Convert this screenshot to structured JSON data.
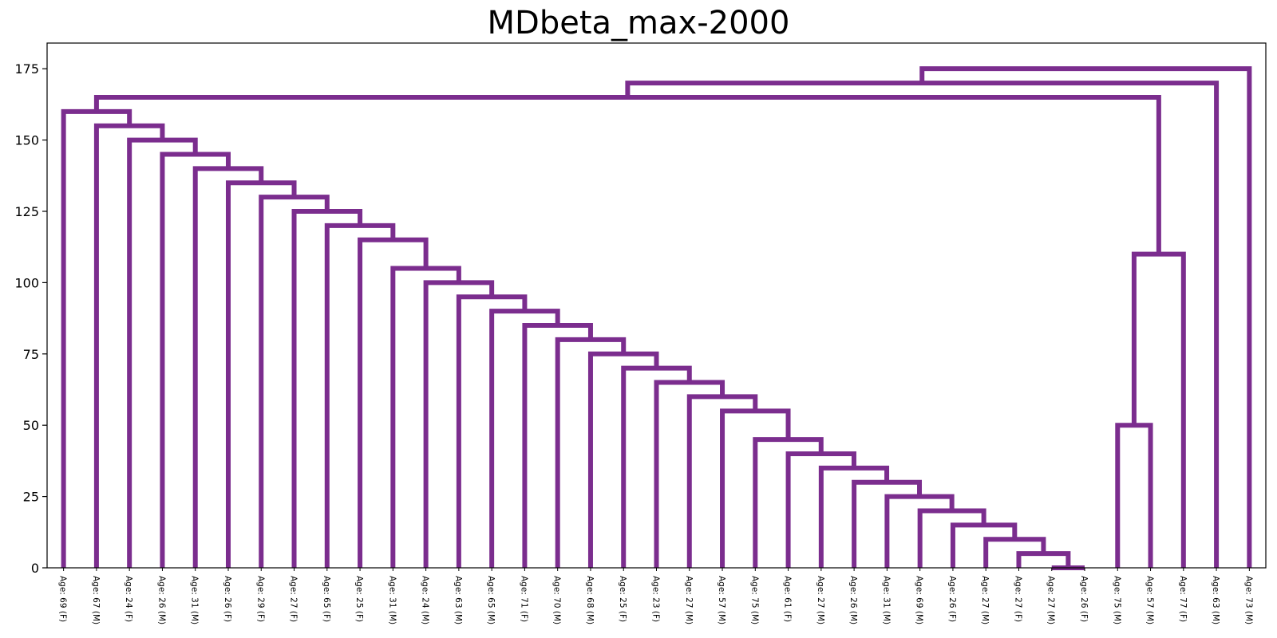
{
  "chart_data": {
    "type": "dendrogram",
    "title": "MDbeta_max-2000",
    "xlabel": "",
    "ylabel": "",
    "ylim": [
      0,
      184
    ],
    "yticks": [
      0,
      25,
      50,
      75,
      100,
      125,
      150,
      175
    ],
    "grid": false,
    "color": "#7b2d8e",
    "leaves": [
      "Age: 69 (F)",
      "Age: 67 (M)",
      "Age: 24 (F)",
      "Age: 26 (M)",
      "Age: 31 (M)",
      "Age: 26 (F)",
      "Age: 29 (F)",
      "Age: 27 (F)",
      "Age: 65 (F)",
      "Age: 25 (F)",
      "Age: 31 (M)",
      "Age: 24 (M)",
      "Age: 63 (M)",
      "Age: 65 (M)",
      "Age: 71 (F)",
      "Age: 70 (M)",
      "Age: 68 (M)",
      "Age: 25 (F)",
      "Age: 23 (F)",
      "Age: 27 (M)",
      "Age: 57 (M)",
      "Age: 75 (M)",
      "Age: 61 (F)",
      "Age: 27 (M)",
      "Age: 26 (M)",
      "Age: 31 (M)",
      "Age: 69 (M)",
      "Age: 26 (F)",
      "Age: 27 (M)",
      "Age: 27 (F)",
      "Age: 27 (M)",
      "Age: 26 (F)",
      "Age: 75 (M)",
      "Age: 57 (M)",
      "Age: 77 (F)",
      "Age: 63 (M)",
      "Age: 73 (M)"
    ],
    "merges": [
      {
        "left": "L30",
        "right": "L31",
        "height": 0
      },
      {
        "left": "L29",
        "right": "C1",
        "height": 5
      },
      {
        "left": "L28",
        "right": "C2",
        "height": 10
      },
      {
        "left": "L27",
        "right": "C3",
        "height": 15
      },
      {
        "left": "L26",
        "right": "C4",
        "height": 20
      },
      {
        "left": "L25",
        "right": "C5",
        "height": 25
      },
      {
        "left": "L24",
        "right": "C6",
        "height": 30
      },
      {
        "left": "L23",
        "right": "C7",
        "height": 35
      },
      {
        "left": "L22",
        "right": "C8",
        "height": 40
      },
      {
        "left": "L21",
        "right": "C9",
        "height": 45
      },
      {
        "left": "L20",
        "right": "C10",
        "height": 55
      },
      {
        "left": "L19",
        "right": "C11",
        "height": 60
      },
      {
        "left": "L18",
        "right": "C12",
        "height": 65
      },
      {
        "left": "L17",
        "right": "C13",
        "height": 70
      },
      {
        "left": "L16",
        "right": "C14",
        "height": 75
      },
      {
        "left": "L15",
        "right": "C15",
        "height": 80
      },
      {
        "left": "L14",
        "right": "C16",
        "height": 85
      },
      {
        "left": "L13",
        "right": "C17",
        "height": 90
      },
      {
        "left": "L12",
        "right": "C18",
        "height": 95
      },
      {
        "left": "L11",
        "right": "C19",
        "height": 100
      },
      {
        "left": "L10",
        "right": "C20",
        "height": 105
      },
      {
        "left": "L9",
        "right": "C21",
        "height": 115
      },
      {
        "left": "L8",
        "right": "C22",
        "height": 120
      },
      {
        "left": "L7",
        "right": "C23",
        "height": 125
      },
      {
        "left": "L6",
        "right": "C24",
        "height": 130
      },
      {
        "left": "L5",
        "right": "C25",
        "height": 135
      },
      {
        "left": "L4",
        "right": "C26",
        "height": 140
      },
      {
        "left": "L3",
        "right": "C27",
        "height": 145
      },
      {
        "left": "L2",
        "right": "C28",
        "height": 150
      },
      {
        "left": "L1",
        "right": "C29",
        "height": 155
      },
      {
        "left": "L0",
        "right": "C30",
        "height": 160
      },
      {
        "left": "L32",
        "right": "L33",
        "height": 50
      },
      {
        "left": "C32",
        "right": "L34",
        "height": 110
      },
      {
        "left": "C31",
        "right": "C33",
        "height": 165
      },
      {
        "left": "C34",
        "right": "L35",
        "height": 170
      },
      {
        "left": "C35",
        "right": "L36",
        "height": 175
      }
    ]
  }
}
